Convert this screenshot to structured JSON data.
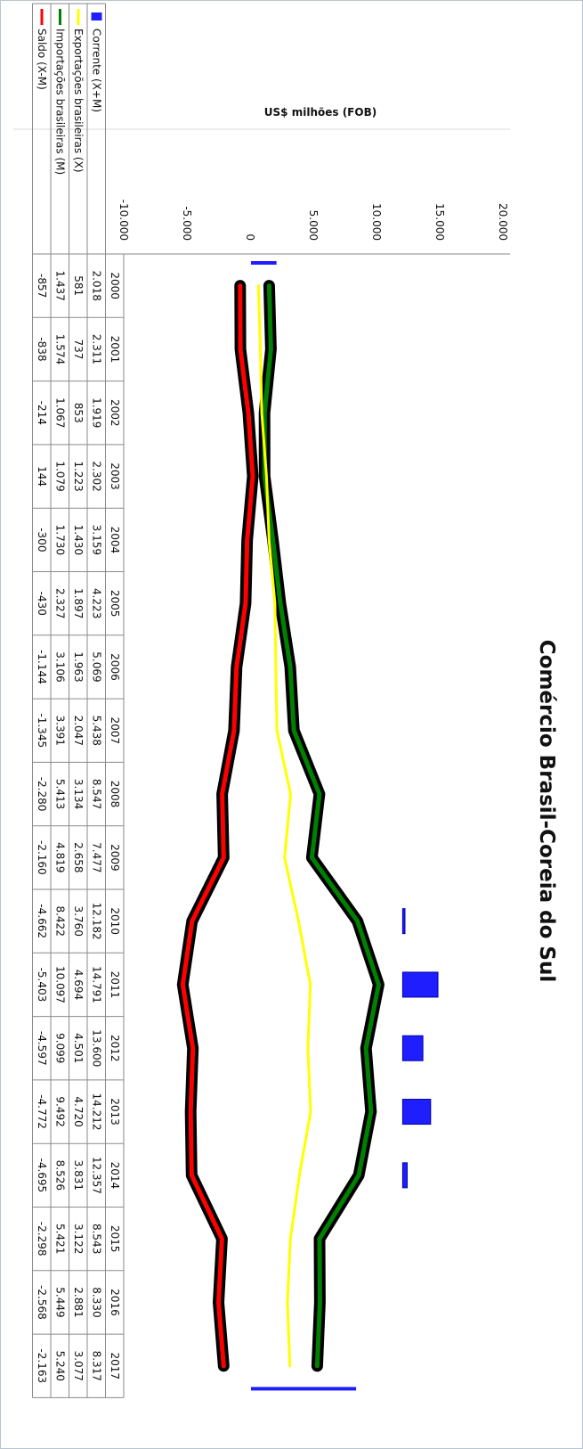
{
  "chart_data": {
    "type": "line",
    "title": "Comércio Brasil-Coreia do Sul",
    "ylabel": "US$ milhões (FOB)",
    "ylim": [
      -10000,
      20000
    ],
    "yticks": [
      "20.000",
      "15.000",
      "10.000",
      "5.000",
      "0",
      "-5.000",
      "-10.000"
    ],
    "categories": [
      "2000",
      "2001",
      "2002",
      "2003",
      "2004",
      "2005",
      "2006",
      "2007",
      "2008",
      "2009",
      "2010",
      "2011",
      "2012",
      "2013",
      "2014",
      "2015",
      "2016",
      "2017"
    ],
    "series": [
      {
        "name": "Corrente (X+M)",
        "kind": "bar",
        "color": "#1e1eff",
        "values": [
          2018,
          2311,
          1919,
          2302,
          3159,
          4223,
          5069,
          5438,
          8547,
          7477,
          12182,
          14791,
          13600,
          14212,
          12357,
          8543,
          8330,
          8317
        ],
        "labels": [
          "2.018",
          "2.311",
          "1.919",
          "2.302",
          "3.159",
          "4.223",
          "5.069",
          "5.438",
          "8.547",
          "7.477",
          "12.182",
          "14.791",
          "13.600",
          "14.212",
          "12.357",
          "8.543",
          "8.330",
          "8.317"
        ]
      },
      {
        "name": "Exportações brasileiras (X)",
        "kind": "line",
        "color": "#ffff00",
        "values": [
          581,
          737,
          853,
          1223,
          1430,
          1897,
          1963,
          2047,
          3134,
          2658,
          3760,
          4694,
          4501,
          4720,
          3831,
          3122,
          2881,
          3077
        ],
        "labels": [
          "581",
          "737",
          "853",
          "1.223",
          "1.430",
          "1.897",
          "1.963",
          "2.047",
          "3.134",
          "2.658",
          "3.760",
          "4.694",
          "4.501",
          "4.720",
          "3.831",
          "3.122",
          "2.881",
          "3.077"
        ]
      },
      {
        "name": "Importações brasileiras (M)",
        "kind": "line",
        "color": "#008000",
        "values": [
          1437,
          1574,
          1067,
          1079,
          1730,
          2327,
          3106,
          3391,
          5413,
          4819,
          8422,
          10097,
          9099,
          9492,
          8526,
          5421,
          5449,
          5240
        ],
        "labels": [
          "1.437",
          "1.574",
          "1.067",
          "1.079",
          "1.730",
          "2.327",
          "3.106",
          "3.391",
          "5.413",
          "4.819",
          "8.422",
          "10.097",
          "9.099",
          "9.492",
          "8.526",
          "5.421",
          "5.449",
          "5.240"
        ]
      },
      {
        "name": "Saldo (X-M)",
        "kind": "line",
        "color": "#ff0000",
        "values": [
          -857,
          -838,
          -214,
          144,
          -300,
          -430,
          -1144,
          -1345,
          -2280,
          -2160,
          -4662,
          -5403,
          -4597,
          -4772,
          -4695,
          -2298,
          -2568,
          -2163
        ],
        "labels": [
          "-857",
          "-838",
          "-214",
          "144",
          "-300",
          "-430",
          "-1.144",
          "-1.345",
          "-2.280",
          "-2.160",
          "-4.662",
          "-5.403",
          "-4.597",
          "-4.772",
          "-4.695",
          "-2.298",
          "-2.568",
          "-2.163"
        ]
      }
    ],
    "legend_position": "data table (left of year columns)",
    "grid": false
  }
}
